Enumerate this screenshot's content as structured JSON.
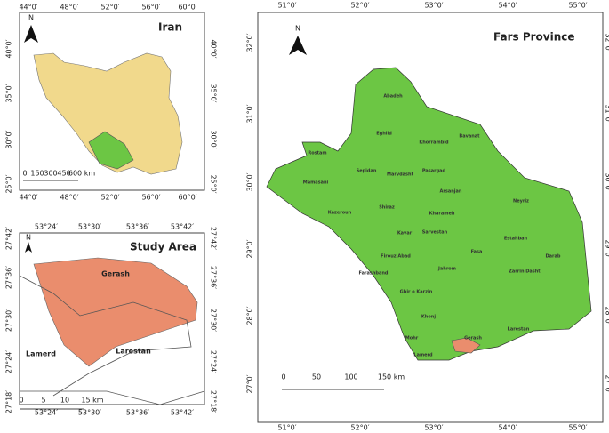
{
  "iran": {
    "title": "Iran",
    "north": "N",
    "lon_labels": [
      "44°0′",
      "48°0′",
      "52°0′",
      "56°0′",
      "60°0′"
    ],
    "lat_labels": [
      "40°0′",
      "35°0′",
      "30°0′",
      "25°0′"
    ],
    "scale_labels": [
      "0",
      "150",
      "300",
      "450",
      "600 km"
    ]
  },
  "study_area": {
    "title": "Study Area",
    "north": "N",
    "lon_labels": [
      "53°24′",
      "53°30′",
      "53°36′",
      "53°42′"
    ],
    "lat_labels": [
      "27°42′",
      "27°36′",
      "27°30′",
      "27°24′",
      "27°18′"
    ],
    "places": [
      "Gerash",
      "Lamerd",
      "Larestan"
    ],
    "scale_labels": [
      "0",
      "5",
      "10",
      "15 km"
    ]
  },
  "fars": {
    "title": "Fars Province",
    "north": "N",
    "lon_labels": [
      "51°0′",
      "52°0′",
      "53°0′",
      "54°0′",
      "55°0′"
    ],
    "lat_labels": [
      "32°0′",
      "31°0′",
      "30°0′",
      "29°0′",
      "28°0′",
      "27°0′"
    ],
    "counties": [
      "Abadeh",
      "Eghlid",
      "Khorrambid",
      "Bavanat",
      "Rostam",
      "Sepidan",
      "Marvdasht",
      "Pasargad",
      "Arsanjan",
      "Mamasani",
      "Shiraz",
      "Kharameh",
      "Neyriz",
      "Kazeroun",
      "Kavar",
      "Sarvestan",
      "Estahban",
      "Firouz Abad",
      "Fasa",
      "Darab",
      "Farashband",
      "Jahrom",
      "Zarrin Dasht",
      "Ghir o Karzin",
      "Khonj",
      "Larestan",
      "Mohr",
      "Gerash",
      "Lamerd"
    ],
    "scale_labels": [
      "0",
      "50",
      "100",
      "150 km"
    ]
  }
}
